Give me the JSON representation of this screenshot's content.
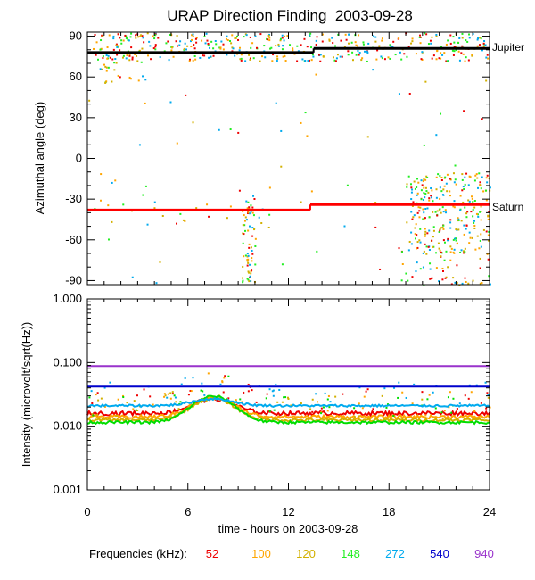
{
  "chart_data": {
    "title": "URAP Direction Finding  2003-09-28",
    "xlabel": "time - hours on 2003-09-28",
    "x_ticks": [
      "0",
      "6",
      "12",
      "18",
      "24"
    ],
    "xlim": [
      0,
      24
    ],
    "panels": [
      {
        "type": "scatter",
        "ylabel": "Azimuthal angle (deg)",
        "ylim": [
          -93,
          93
        ],
        "y_tick_values": [
          90,
          60,
          30,
          0,
          -30,
          -60,
          -90
        ],
        "y_tick_labels": [
          "90",
          "60",
          "30",
          "0",
          "-30",
          "-60",
          "-90"
        ],
        "reference_lines": [
          {
            "name": "Jupiter",
            "color": "#000000",
            "segments": [
              [
                0,
                13.5,
                78
              ],
              [
                13.5,
                24,
                81
              ]
            ]
          },
          {
            "name": "Saturn",
            "color": "#ff0000",
            "segments": [
              [
                0,
                13.3,
                -38
              ],
              [
                13.3,
                24,
                -34
              ]
            ]
          }
        ],
        "clusters": [
          {
            "x": [
              0.2,
              24
            ],
            "y": [
              72,
              93
            ],
            "n": 420
          },
          {
            "x": [
              0.5,
              3.5
            ],
            "y": [
              55,
              93
            ],
            "n": 40
          },
          {
            "x": [
              9.2,
              10.0
            ],
            "y": [
              -92,
              -25
            ],
            "n": 70
          },
          {
            "x": [
              19,
              24
            ],
            "y": [
              -70,
              -10
            ],
            "n": 260
          },
          {
            "x": [
              18.5,
              24
            ],
            "y": [
              -93,
              -60
            ],
            "n": 60
          },
          {
            "x": [
              0.5,
              11
            ],
            "y": [
              -55,
              -30
            ],
            "n": 25
          },
          {
            "x": [
              0,
              24
            ],
            "y": [
              -93,
              93
            ],
            "n": 70
          }
        ]
      },
      {
        "type": "line",
        "scale": "log",
        "ylabel": "Intensity (microvolt/sqrt(Hz))",
        "ylim": [
          0.001,
          1.0
        ],
        "y_tick_values": [
          1.0,
          0.1,
          0.01,
          0.001
        ],
        "y_tick_labels": [
          "1.000",
          "0.100",
          "0.010",
          "0.001"
        ],
        "bump": {
          "center_hours": 7.5,
          "width_hours": 1.6
        },
        "series": [
          {
            "name": "52",
            "color": "#ee0000",
            "base": 0.016,
            "bump": 0.011,
            "noise": 0.15
          },
          {
            "name": "100",
            "color": "#ffa500",
            "base": 0.014,
            "bump": 0.014,
            "noise": 0.12
          },
          {
            "name": "120",
            "color": "#d2b000",
            "base": 0.0125,
            "bump": 0.015,
            "noise": 0.12
          },
          {
            "name": "148",
            "color": "#00dd00",
            "base": 0.0115,
            "bump": 0.018,
            "noise": 0.1
          },
          {
            "name": "272",
            "color": "#00aaee",
            "base": 0.021,
            "bump": 0.006,
            "noise": 0.08
          },
          {
            "name": "540",
            "color": "#0000cc",
            "base": 0.042,
            "bump": 0.0,
            "noise": 0.0
          },
          {
            "name": "940",
            "color": "#9932cc",
            "base": 0.088,
            "bump": 0.0,
            "noise": 0.0
          }
        ]
      }
    ]
  },
  "legend": {
    "label": "Frequencies (kHz):",
    "items": [
      {
        "label": "52",
        "color": "#ee0000"
      },
      {
        "label": "100",
        "color": "#ffa500"
      },
      {
        "label": "120",
        "color": "#d2b000"
      },
      {
        "label": "148",
        "color": "#22ee22"
      },
      {
        "label": "272",
        "color": "#00aaee"
      },
      {
        "label": "540",
        "color": "#0000cc"
      },
      {
        "label": "940",
        "color": "#9932cc"
      }
    ]
  }
}
